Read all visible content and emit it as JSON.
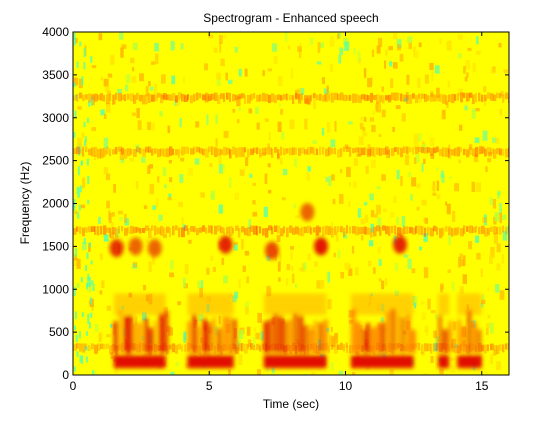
{
  "chart_data": {
    "type": "heatmap",
    "title": "Spectrogram - Enhanced speech",
    "xlabel": "Time (sec)",
    "ylabel": "Frequency (Hz)",
    "xlim": [
      0,
      16
    ],
    "ylim": [
      0,
      4000
    ],
    "x_ticks": [
      0,
      5,
      10,
      15
    ],
    "y_ticks": [
      0,
      500,
      1000,
      1500,
      2000,
      2500,
      3000,
      3500,
      4000
    ],
    "colormap": "jet",
    "colors": {
      "background": "#ffff00",
      "strong": "#e00000",
      "medium": "#ff7a00",
      "weak": "#00ffd0"
    },
    "grid": false,
    "horizontal_bands_hz": [
      {
        "f": 3250,
        "level": 0.55
      },
      {
        "f": 2620,
        "level": 0.5
      },
      {
        "f": 1700,
        "level": 0.55
      },
      {
        "f": 330,
        "level": 0.45
      }
    ],
    "speech_segments": [
      {
        "t0": 1.5,
        "t1": 3.4
      },
      {
        "t0": 4.2,
        "t1": 5.9
      },
      {
        "t0": 7.0,
        "t1": 9.3
      },
      {
        "t0": 10.2,
        "t1": 12.5
      },
      {
        "t0": 13.4,
        "t1": 13.8
      },
      {
        "t0": 14.1,
        "t1": 15.0
      }
    ],
    "formant_blobs": [
      {
        "t": 1.6,
        "f": 1480,
        "level": 0.8
      },
      {
        "t": 2.3,
        "f": 1500,
        "level": 0.6
      },
      {
        "t": 3.0,
        "f": 1480,
        "level": 0.6
      },
      {
        "t": 5.6,
        "f": 1520,
        "level": 0.85
      },
      {
        "t": 7.3,
        "f": 1450,
        "level": 0.7
      },
      {
        "t": 9.1,
        "f": 1500,
        "level": 0.9
      },
      {
        "t": 12.0,
        "f": 1520,
        "level": 0.85
      },
      {
        "t": 8.6,
        "f": 1900,
        "level": 0.6
      }
    ]
  }
}
